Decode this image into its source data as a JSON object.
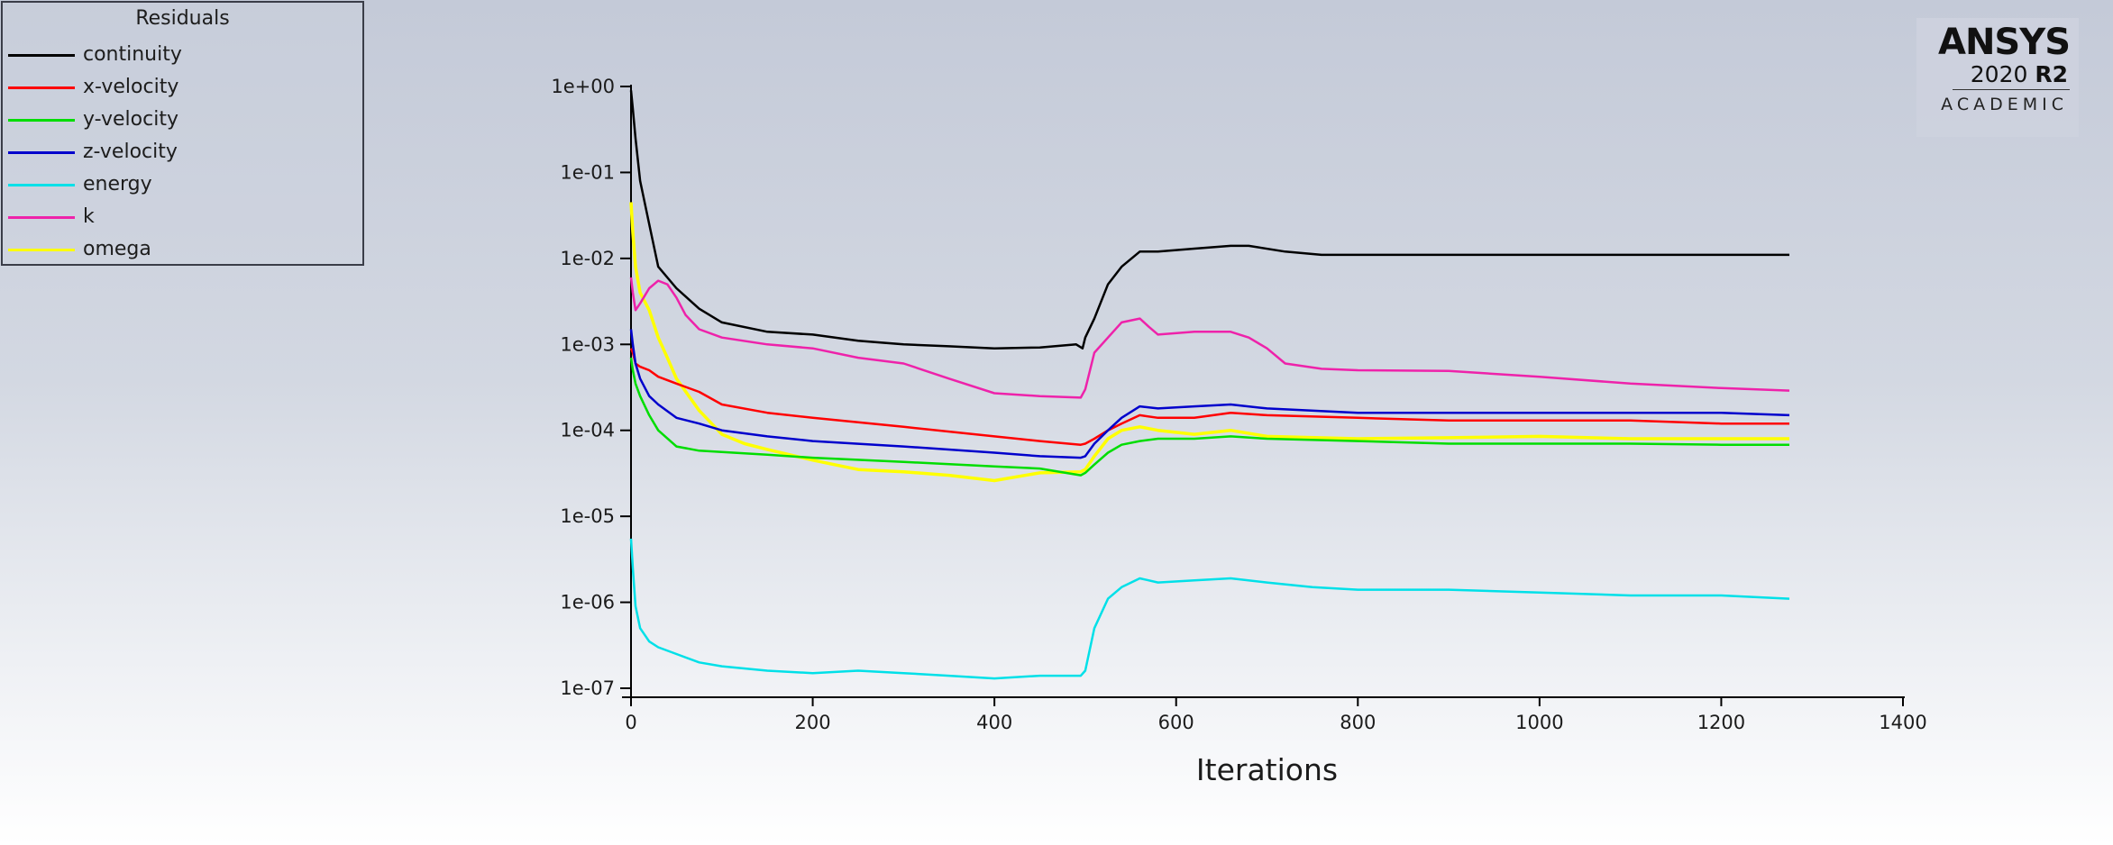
{
  "legend": {
    "title": "Residuals",
    "items": [
      {
        "label": "continuity",
        "color": "#000000"
      },
      {
        "label": "x-velocity",
        "color": "#ff0000"
      },
      {
        "label": "y-velocity",
        "color": "#00dd00"
      },
      {
        "label": "z-velocity",
        "color": "#0000cc"
      },
      {
        "label": "energy",
        "color": "#00e0e8"
      },
      {
        "label": "k",
        "color": "#ee22aa"
      },
      {
        "label": "omega",
        "color": "#ffff00"
      }
    ]
  },
  "logo": {
    "brand": "ANSYS",
    "version": "2020",
    "release": "R2",
    "tagline": "ACADEMIC"
  },
  "chart_data": {
    "type": "line",
    "title": "",
    "xlabel": "Iterations",
    "ylabel": "",
    "xlim": [
      0,
      1400
    ],
    "ylim": [
      1e-07,
      1
    ],
    "yscale": "log",
    "xticks": [
      0,
      200,
      400,
      600,
      800,
      1000,
      1200,
      1400
    ],
    "yticks": [
      1e-07,
      1e-06,
      1e-05,
      0.0001,
      0.001,
      0.01,
      0.1,
      1
    ],
    "ytick_labels": [
      "1e-07",
      "1e-06",
      "1e-05",
      "1e-04",
      "1e-03",
      "1e-02",
      "1e-01",
      "1e+00"
    ],
    "grid": false,
    "legend_position": "top-left",
    "series": [
      {
        "name": "continuity",
        "color": "#000000",
        "x": [
          0,
          2,
          5,
          10,
          20,
          30,
          50,
          75,
          100,
          150,
          200,
          250,
          300,
          350,
          400,
          450,
          490,
          497,
          500,
          510,
          525,
          540,
          560,
          580,
          620,
          660,
          680,
          720,
          760,
          800,
          900,
          1000,
          1100,
          1200,
          1275
        ],
        "y": [
          0.9,
          0.55,
          0.25,
          0.08,
          0.025,
          0.008,
          0.0045,
          0.0026,
          0.0018,
          0.0014,
          0.0013,
          0.0011,
          0.001,
          0.00095,
          0.0009,
          0.00092,
          0.001,
          0.0009,
          0.0012,
          0.002,
          0.005,
          0.008,
          0.012,
          0.012,
          0.013,
          0.014,
          0.014,
          0.012,
          0.011,
          0.011,
          0.011,
          0.011,
          0.011,
          0.011,
          0.011
        ]
      },
      {
        "name": "x-velocity",
        "color": "#ff0000",
        "x": [
          0,
          2,
          5,
          10,
          20,
          30,
          50,
          75,
          100,
          150,
          200,
          300,
          400,
          450,
          495,
          500,
          510,
          525,
          540,
          560,
          580,
          620,
          660,
          700,
          800,
          900,
          1000,
          1100,
          1200,
          1275
        ],
        "y": [
          0.0009,
          0.0008,
          0.0006,
          0.00055,
          0.0005,
          0.00042,
          0.00035,
          0.00028,
          0.0002,
          0.00016,
          0.00014,
          0.00011,
          8.5e-05,
          7.5e-05,
          6.8e-05,
          7e-05,
          8e-05,
          0.0001,
          0.00012,
          0.00015,
          0.00014,
          0.00014,
          0.00016,
          0.00015,
          0.00014,
          0.00013,
          0.00013,
          0.00013,
          0.00012,
          0.00012
        ]
      },
      {
        "name": "y-velocity",
        "color": "#00dd00",
        "x": [
          0,
          2,
          5,
          10,
          20,
          30,
          50,
          75,
          100,
          150,
          200,
          300,
          400,
          450,
          495,
          500,
          510,
          525,
          540,
          560,
          580,
          620,
          660,
          700,
          800,
          900,
          1000,
          1100,
          1200,
          1275
        ],
        "y": [
          0.0007,
          0.0005,
          0.00035,
          0.00025,
          0.00015,
          0.0001,
          6.5e-05,
          5.8e-05,
          5.6e-05,
          5.2e-05,
          4.8e-05,
          4.3e-05,
          3.8e-05,
          3.6e-05,
          3e-05,
          3.2e-05,
          4e-05,
          5.5e-05,
          6.8e-05,
          7.5e-05,
          8e-05,
          8e-05,
          8.5e-05,
          8e-05,
          7.5e-05,
          7e-05,
          7e-05,
          7e-05,
          6.8e-05,
          6.8e-05
        ]
      },
      {
        "name": "z-velocity",
        "color": "#0000cc",
        "x": [
          0,
          2,
          5,
          10,
          20,
          30,
          50,
          75,
          100,
          150,
          200,
          300,
          400,
          450,
          495,
          500,
          510,
          525,
          540,
          560,
          580,
          620,
          660,
          700,
          800,
          900,
          1000,
          1100,
          1200,
          1275
        ],
        "y": [
          0.0015,
          0.001,
          0.0006,
          0.0004,
          0.00025,
          0.0002,
          0.00014,
          0.00012,
          0.0001,
          8.5e-05,
          7.5e-05,
          6.5e-05,
          5.5e-05,
          5e-05,
          4.8e-05,
          5e-05,
          7e-05,
          0.0001,
          0.00014,
          0.00019,
          0.00018,
          0.00019,
          0.0002,
          0.00018,
          0.00016,
          0.00016,
          0.00016,
          0.00016,
          0.00016,
          0.00015
        ]
      },
      {
        "name": "energy",
        "color": "#00e0e8",
        "x": [
          0,
          2,
          5,
          10,
          20,
          30,
          50,
          75,
          100,
          150,
          200,
          250,
          300,
          350,
          400,
          450,
          495,
          500,
          510,
          525,
          540,
          560,
          580,
          620,
          660,
          700,
          750,
          800,
          900,
          1000,
          1100,
          1200,
          1275
        ],
        "y": [
          5.5e-06,
          2.5e-06,
          9e-07,
          5e-07,
          3.5e-07,
          3e-07,
          2.5e-07,
          2e-07,
          1.8e-07,
          1.6e-07,
          1.5e-07,
          1.6e-07,
          1.5e-07,
          1.4e-07,
          1.3e-07,
          1.4e-07,
          1.4e-07,
          1.6e-07,
          5e-07,
          1.1e-06,
          1.5e-06,
          1.9e-06,
          1.7e-06,
          1.8e-06,
          1.9e-06,
          1.7e-06,
          1.5e-06,
          1.4e-06,
          1.4e-06,
          1.3e-06,
          1.2e-06,
          1.2e-06,
          1.1e-06
        ]
      },
      {
        "name": "k",
        "color": "#ee22aa",
        "x": [
          0,
          2,
          5,
          10,
          20,
          30,
          40,
          50,
          60,
          75,
          100,
          150,
          200,
          250,
          300,
          350,
          400,
          450,
          495,
          500,
          510,
          525,
          540,
          560,
          570,
          580,
          620,
          660,
          680,
          700,
          720,
          760,
          800,
          900,
          1000,
          1100,
          1200,
          1275
        ],
        "y": [
          0.006,
          0.004,
          0.0025,
          0.003,
          0.0045,
          0.0055,
          0.005,
          0.0035,
          0.0022,
          0.0015,
          0.0012,
          0.001,
          0.0009,
          0.0007,
          0.0006,
          0.0004,
          0.00027,
          0.00025,
          0.00024,
          0.0003,
          0.0008,
          0.0012,
          0.0018,
          0.002,
          0.0016,
          0.0013,
          0.0014,
          0.0014,
          0.0012,
          0.0009,
          0.0006,
          0.00052,
          0.0005,
          0.00049,
          0.00042,
          0.00035,
          0.00031,
          0.00029
        ]
      },
      {
        "name": "omega",
        "color": "#ffff00",
        "x": [
          0,
          2,
          5,
          10,
          20,
          30,
          40,
          50,
          75,
          100,
          125,
          150,
          200,
          250,
          300,
          350,
          400,
          450,
          495,
          500,
          510,
          525,
          540,
          560,
          580,
          620,
          660,
          700,
          800,
          900,
          1000,
          1100,
          1200,
          1275
        ],
        "y": [
          0.045,
          0.02,
          0.008,
          0.004,
          0.0025,
          0.0012,
          0.0007,
          0.0004,
          0.00017,
          9e-05,
          7e-05,
          6e-05,
          4.5e-05,
          3.5e-05,
          3.3e-05,
          3e-05,
          2.6e-05,
          3.2e-05,
          3.3e-05,
          3.5e-05,
          5e-05,
          8e-05,
          0.0001,
          0.00011,
          0.0001,
          9e-05,
          0.0001,
          8.5e-05,
          8e-05,
          8.2e-05,
          8.5e-05,
          8e-05,
          8e-05,
          8e-05
        ]
      }
    ]
  }
}
